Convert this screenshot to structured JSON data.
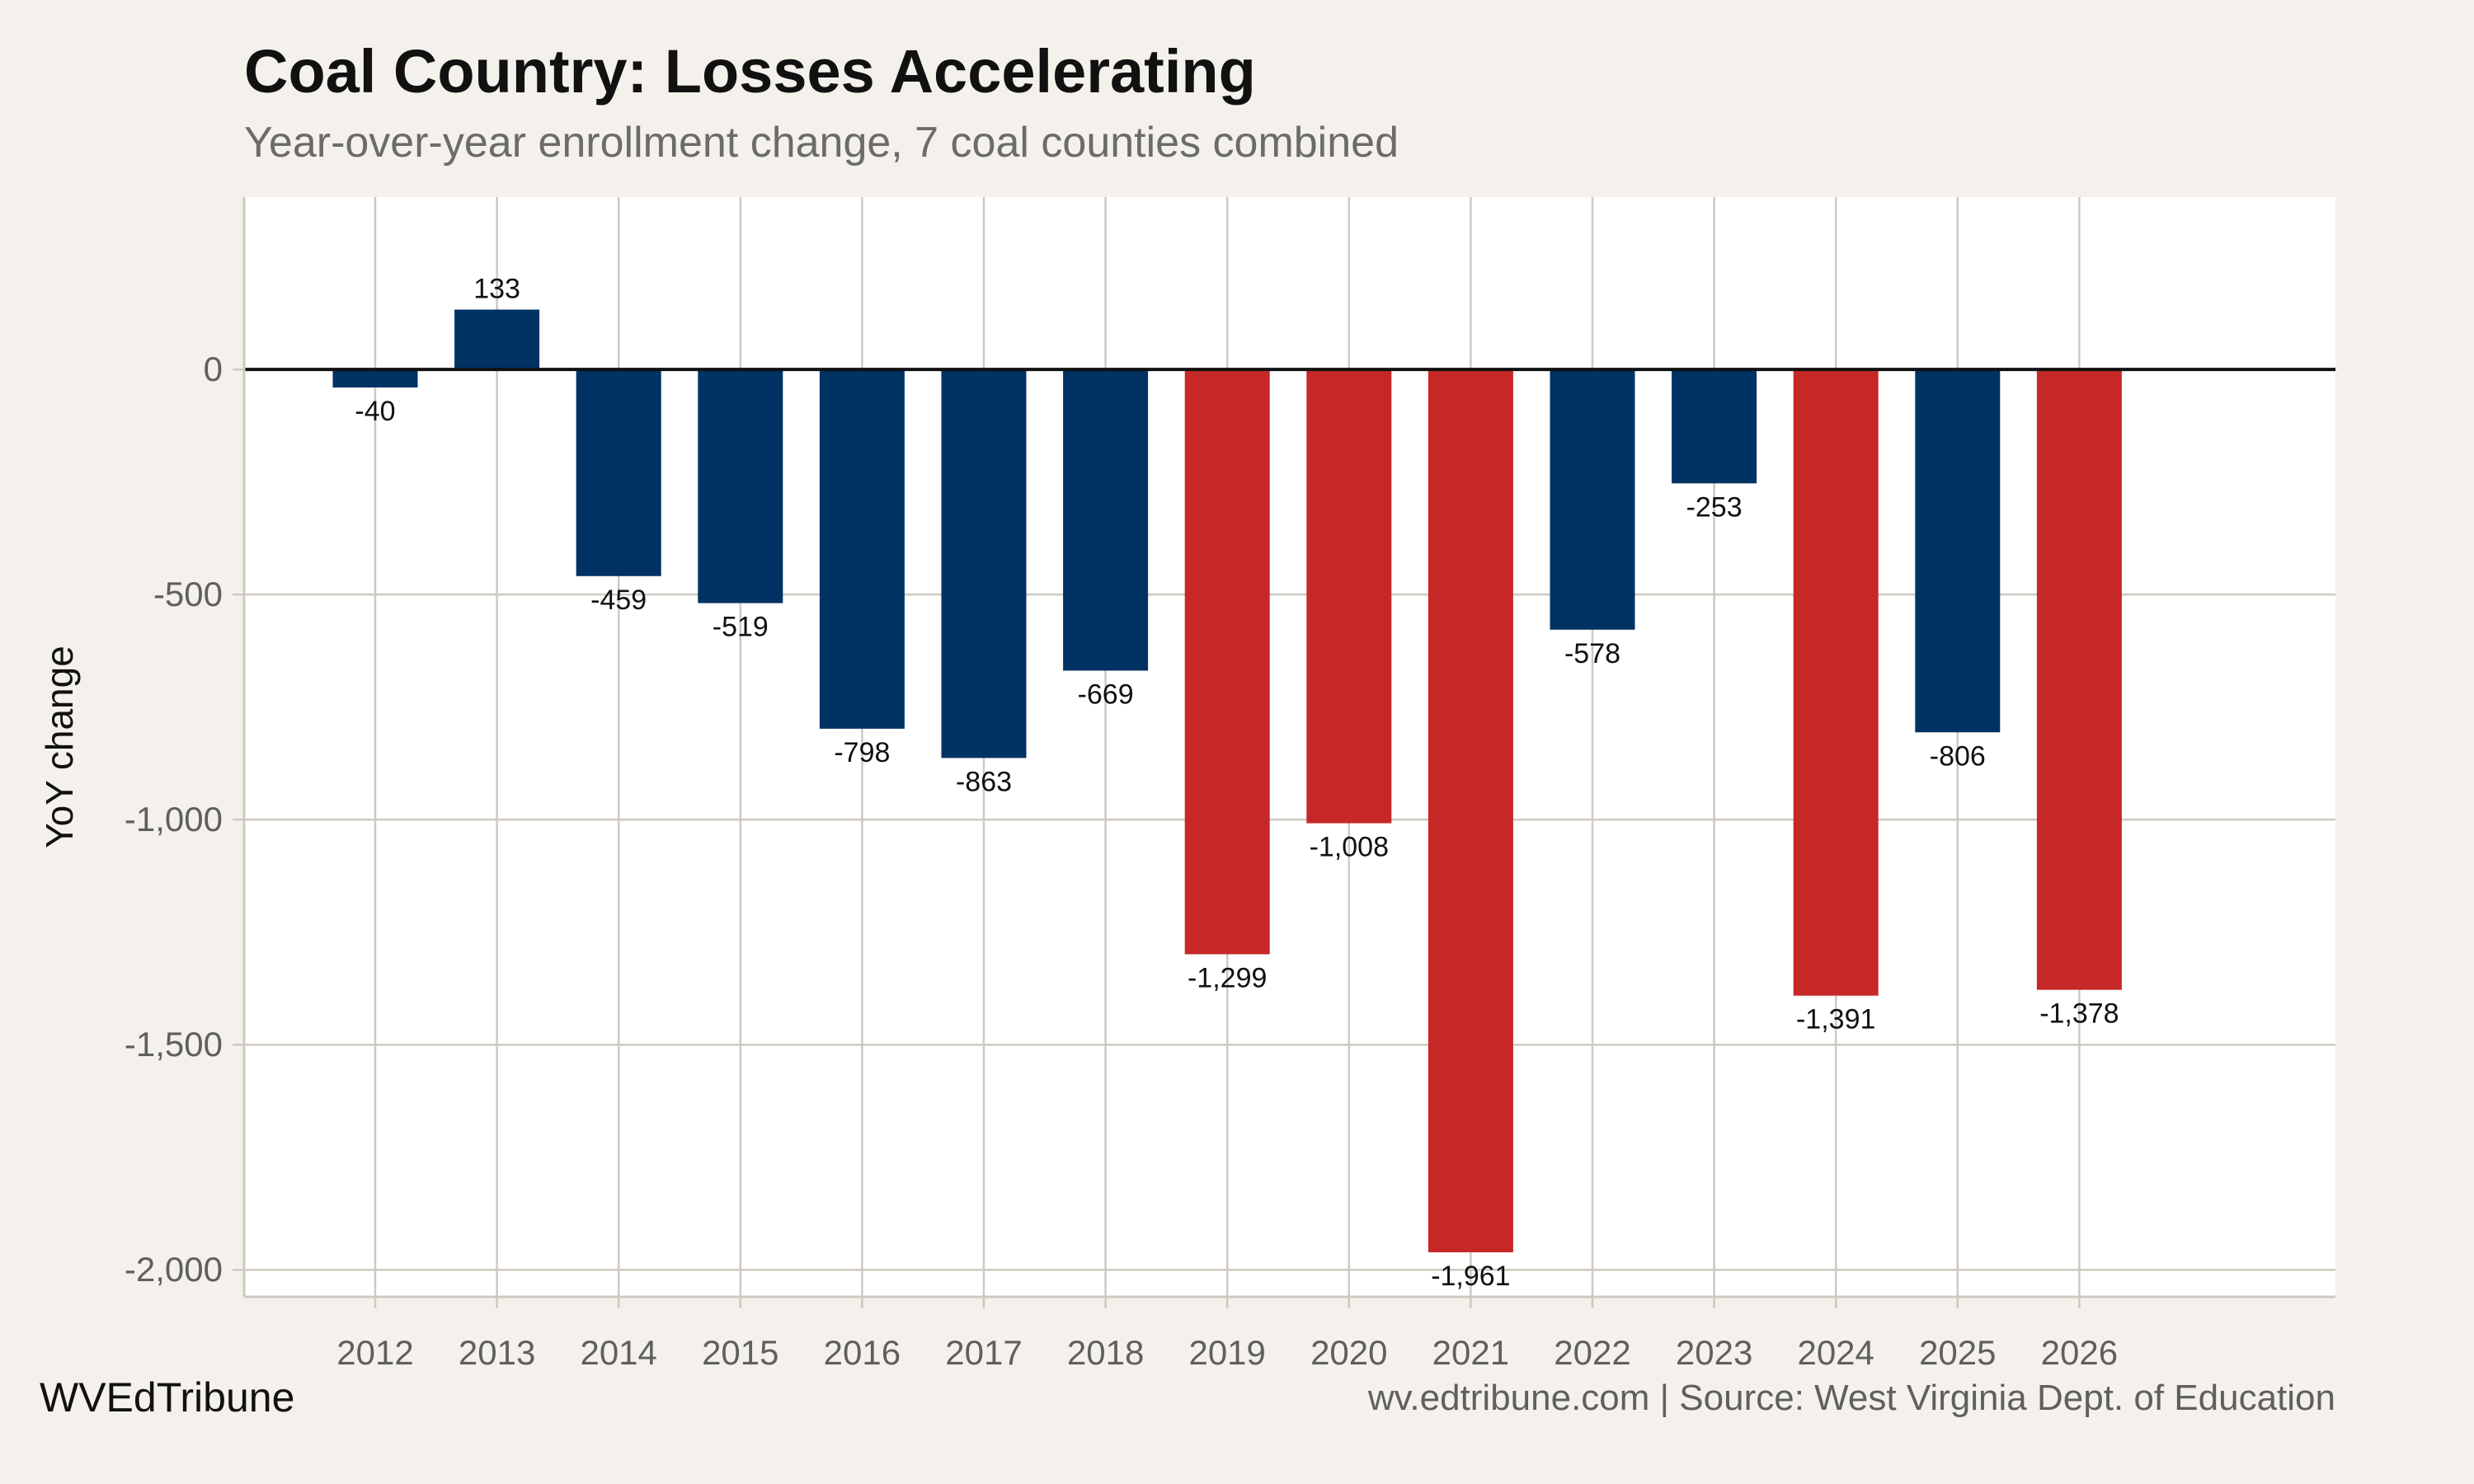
{
  "chart_data": {
    "type": "bar",
    "title": "Coal Country: Losses Accelerating",
    "subtitle": "Year-over-year enrollment change, 7 coal counties combined",
    "xlabel": "",
    "ylabel": "YoY change",
    "categories": [
      "2012",
      "2013",
      "2014",
      "2015",
      "2016",
      "2017",
      "2018",
      "2019",
      "2020",
      "2021",
      "2022",
      "2023",
      "2024",
      "2025",
      "2026"
    ],
    "values": [
      -40,
      133,
      -459,
      -519,
      -798,
      -863,
      -669,
      -1299,
      -1008,
      -1961,
      -578,
      -253,
      -1391,
      -806,
      -1378
    ],
    "data_labels": [
      "-40",
      "133",
      "-459",
      "-519",
      "-798",
      "-863",
      "-669",
      "-1,299",
      "-1,008",
      "-1,961",
      "-578",
      "-253",
      "-1,391",
      "-806",
      "-1,378"
    ],
    "highlighted": [
      false,
      false,
      false,
      false,
      false,
      false,
      false,
      true,
      true,
      true,
      false,
      false,
      true,
      false,
      true
    ],
    "ylim": [
      -2060,
      383
    ],
    "yticks": [
      0,
      -500,
      -1000,
      -1500,
      -2000
    ],
    "ytick_labels": [
      "0",
      "-500",
      "-1,000",
      "-1,500",
      "-2,000"
    ],
    "grid": true,
    "legend": "none",
    "colors": {
      "default": "#003263",
      "highlight": "#C62828",
      "background": "#F4F1EC",
      "panel": "#FFFFFF",
      "grid": "#CEC9C0",
      "zero_line": "#111111"
    }
  },
  "footer": {
    "brand": "WVEdTribune",
    "source": "wv.edtribune.com | Source: West Virginia Dept. of Education"
  }
}
